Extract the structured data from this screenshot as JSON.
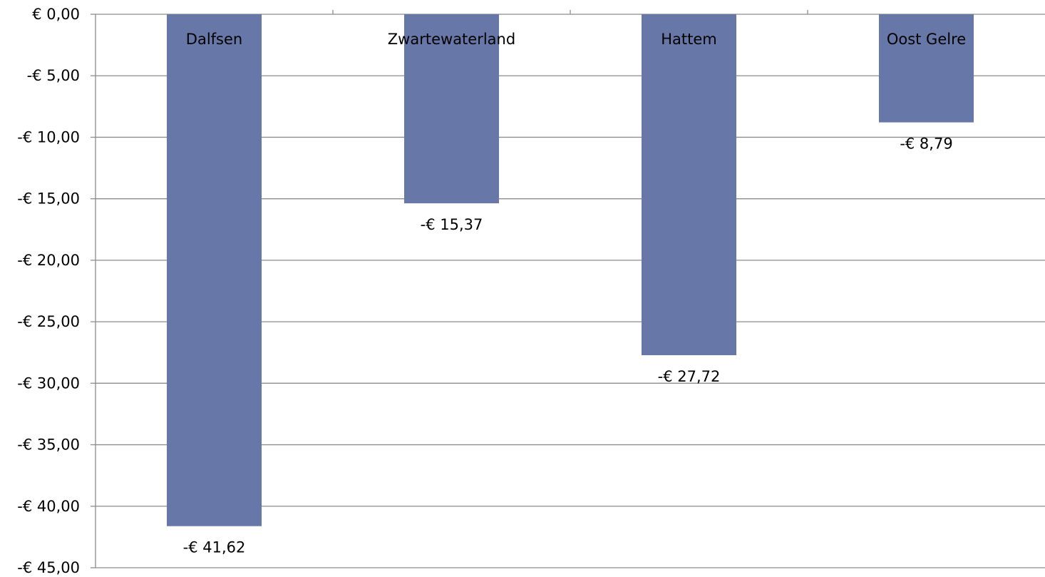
{
  "chart_data": {
    "type": "bar",
    "categories": [
      "Dalfsen",
      "Zwartewaterland",
      "Hattem",
      "Oost Gelre"
    ],
    "values": [
      -41.62,
      -15.37,
      -27.72,
      -8.79
    ],
    "value_labels": [
      "-€ 41,62",
      "-€ 15,37",
      "-€ 27,72",
      "-€ 8,79"
    ],
    "ylim": [
      -45,
      0
    ],
    "y_ticks": [
      0,
      -5,
      -10,
      -15,
      -20,
      -25,
      -30,
      -35,
      -40,
      -45
    ],
    "y_tick_labels": [
      "€ 0,00",
      "-€ 5,00",
      "-€ 10,00",
      "-€ 15,00",
      "-€ 20,00",
      "-€ 25,00",
      "-€ 30,00",
      "-€ 35,00",
      "-€ 40,00",
      "-€ 45,00"
    ],
    "grid": true,
    "category_labels_position": "top",
    "colors": {
      "bar": "#6677A8",
      "grid": "#8C8C8C",
      "axis": "#8C8C8C",
      "text": "#000000"
    }
  }
}
